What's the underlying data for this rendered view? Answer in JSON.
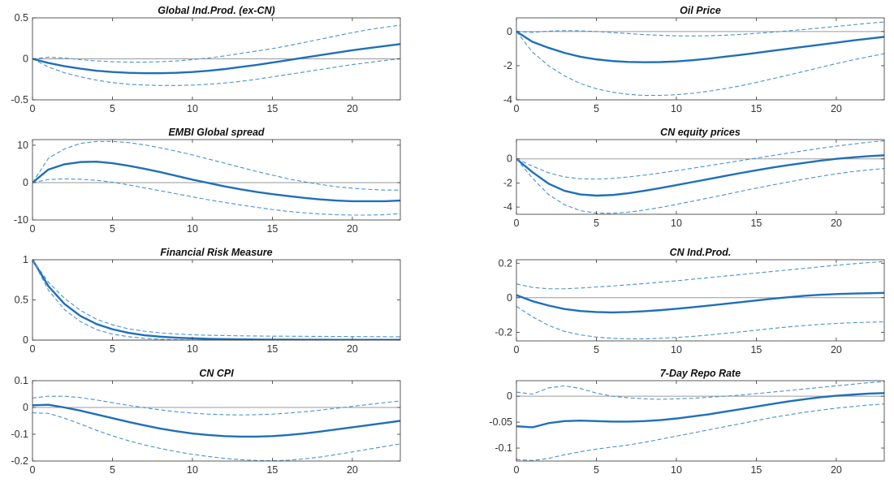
{
  "colors": {
    "irf": "#1f6fba",
    "band": "#4a90d0",
    "zero": "#9a9a9a",
    "axis": "#333333"
  },
  "chart_data": [
    {
      "type": "line",
      "title": "Global Ind.Prod. (ex-CN)",
      "xlim": [
        0,
        23
      ],
      "ylim": [
        -0.5,
        0.5
      ],
      "xticks": [
        0,
        5,
        10,
        15,
        20
      ],
      "yticks": [
        -0.5,
        0,
        0.5
      ],
      "xtick_labels": [
        "0",
        "5",
        "10",
        "15",
        "20"
      ],
      "ytick_labels": [
        "-0.5",
        "0",
        "0.5"
      ],
      "x": [
        0,
        1,
        2,
        3,
        4,
        5,
        6,
        7,
        8,
        9,
        10,
        11,
        12,
        13,
        14,
        15,
        16,
        17,
        18,
        19,
        20,
        21,
        22,
        23
      ],
      "series": [
        {
          "name": "median",
          "values": [
            0,
            -0.05,
            -0.09,
            -0.12,
            -0.145,
            -0.16,
            -0.17,
            -0.175,
            -0.175,
            -0.17,
            -0.16,
            -0.145,
            -0.125,
            -0.1,
            -0.075,
            -0.045,
            -0.015,
            0.015,
            0.045,
            0.075,
            0.105,
            0.13,
            0.155,
            0.18
          ]
        },
        {
          "name": "upper",
          "values": [
            0,
            0.02,
            0.01,
            -0.01,
            -0.025,
            -0.035,
            -0.04,
            -0.04,
            -0.035,
            -0.025,
            -0.01,
            0.01,
            0.035,
            0.065,
            0.095,
            0.125,
            0.16,
            0.2,
            0.24,
            0.28,
            0.32,
            0.355,
            0.385,
            0.41
          ]
        },
        {
          "name": "lower",
          "values": [
            0,
            -0.1,
            -0.17,
            -0.22,
            -0.26,
            -0.29,
            -0.31,
            -0.32,
            -0.325,
            -0.325,
            -0.32,
            -0.31,
            -0.295,
            -0.275,
            -0.25,
            -0.22,
            -0.19,
            -0.16,
            -0.13,
            -0.1,
            -0.07,
            -0.045,
            -0.02,
            0
          ]
        }
      ]
    },
    {
      "type": "line",
      "title": "Oil Price",
      "xlim": [
        0,
        23
      ],
      "ylim": [
        -4,
        0.8
      ],
      "xticks": [
        0,
        5,
        10,
        15,
        20
      ],
      "yticks": [
        -4,
        -2,
        0
      ],
      "xtick_labels": [
        "0",
        "5",
        "10",
        "15",
        "20"
      ],
      "ytick_labels": [
        "-4",
        "-2",
        "0"
      ],
      "x": [
        0,
        1,
        2,
        3,
        4,
        5,
        6,
        7,
        8,
        9,
        10,
        11,
        12,
        13,
        14,
        15,
        16,
        17,
        18,
        19,
        20,
        21,
        22,
        23
      ],
      "series": [
        {
          "name": "median",
          "values": [
            0,
            -0.6,
            -0.95,
            -1.25,
            -1.48,
            -1.63,
            -1.73,
            -1.78,
            -1.8,
            -1.79,
            -1.75,
            -1.68,
            -1.59,
            -1.48,
            -1.37,
            -1.25,
            -1.13,
            -1.01,
            -0.89,
            -0.77,
            -0.65,
            -0.53,
            -0.42,
            -0.31
          ]
        },
        {
          "name": "upper",
          "values": [
            0,
            -0.05,
            0.02,
            0.05,
            0.04,
            0.0,
            -0.06,
            -0.12,
            -0.18,
            -0.22,
            -0.25,
            -0.26,
            -0.25,
            -0.22,
            -0.17,
            -0.11,
            -0.04,
            0.04,
            0.12,
            0.21,
            0.3,
            0.39,
            0.48,
            0.56
          ]
        },
        {
          "name": "lower",
          "values": [
            0,
            -1.2,
            -2.0,
            -2.6,
            -3.05,
            -3.35,
            -3.55,
            -3.68,
            -3.74,
            -3.74,
            -3.7,
            -3.62,
            -3.5,
            -3.35,
            -3.18,
            -2.98,
            -2.77,
            -2.55,
            -2.33,
            -2.1,
            -1.88,
            -1.67,
            -1.48,
            -1.3
          ]
        }
      ]
    },
    {
      "type": "line",
      "title": "EMBI Global spread",
      "xlim": [
        0,
        23
      ],
      "ylim": [
        -10,
        11.5
      ],
      "xticks": [
        0,
        5,
        10,
        15,
        20
      ],
      "yticks": [
        -10,
        0,
        10
      ],
      "xtick_labels": [
        "0",
        "5",
        "10",
        "15",
        "20"
      ],
      "ytick_labels": [
        "-10",
        "0",
        "10"
      ],
      "x": [
        0,
        1,
        2,
        3,
        4,
        5,
        6,
        7,
        8,
        9,
        10,
        11,
        12,
        13,
        14,
        15,
        16,
        17,
        18,
        19,
        20,
        21,
        22,
        23
      ],
      "series": [
        {
          "name": "median",
          "values": [
            0,
            3.5,
            4.9,
            5.5,
            5.6,
            5.2,
            4.5,
            3.7,
            2.8,
            1.8,
            0.8,
            -0.1,
            -1.0,
            -1.8,
            -2.5,
            -3.1,
            -3.6,
            -4.1,
            -4.5,
            -4.8,
            -5.0,
            -5.0,
            -5.0,
            -4.8
          ]
        },
        {
          "name": "upper",
          "values": [
            0,
            6.5,
            9.0,
            10.5,
            11.0,
            11.0,
            10.7,
            10.1,
            9.3,
            8.4,
            7.4,
            6.3,
            5.2,
            4.1,
            3.0,
            2.0,
            1.0,
            0.2,
            -0.5,
            -1.1,
            -1.5,
            -1.8,
            -2.0,
            -2.0
          ]
        },
        {
          "name": "lower",
          "values": [
            0,
            0.8,
            1.0,
            0.9,
            0.6,
            0.1,
            -0.6,
            -1.4,
            -2.2,
            -3.0,
            -3.8,
            -4.6,
            -5.3,
            -6.0,
            -6.6,
            -7.2,
            -7.7,
            -8.1,
            -8.4,
            -8.6,
            -8.7,
            -8.7,
            -8.6,
            -8.3
          ]
        }
      ]
    },
    {
      "type": "line",
      "title": "CN equity prices",
      "xlim": [
        0,
        23
      ],
      "ylim": [
        -4.6,
        1.6
      ],
      "xticks": [
        0,
        5,
        10,
        15,
        20
      ],
      "yticks": [
        -4,
        -2,
        0
      ],
      "xtick_labels": [
        "0",
        "5",
        "10",
        "15",
        "20"
      ],
      "ytick_labels": [
        "-4",
        "-2",
        "0"
      ],
      "x": [
        0,
        1,
        2,
        3,
        4,
        5,
        6,
        7,
        8,
        9,
        10,
        11,
        12,
        13,
        14,
        15,
        16,
        17,
        18,
        19,
        20,
        21,
        22,
        23
      ],
      "series": [
        {
          "name": "median",
          "values": [
            0,
            -1.1,
            -2.05,
            -2.65,
            -2.95,
            -3.05,
            -3.0,
            -2.85,
            -2.65,
            -2.42,
            -2.18,
            -1.93,
            -1.68,
            -1.43,
            -1.18,
            -0.95,
            -0.72,
            -0.52,
            -0.33,
            -0.15,
            0.0,
            0.12,
            0.22,
            0.3
          ]
        },
        {
          "name": "upper",
          "values": [
            0,
            -0.6,
            -1.15,
            -1.5,
            -1.65,
            -1.68,
            -1.62,
            -1.5,
            -1.35,
            -1.17,
            -0.98,
            -0.78,
            -0.57,
            -0.36,
            -0.15,
            0.06,
            0.27,
            0.48,
            0.68,
            0.88,
            1.06,
            1.22,
            1.38,
            1.5
          ]
        },
        {
          "name": "lower",
          "values": [
            0,
            -1.6,
            -2.95,
            -3.8,
            -4.3,
            -4.5,
            -4.52,
            -4.42,
            -4.25,
            -4.03,
            -3.78,
            -3.52,
            -3.25,
            -2.98,
            -2.7,
            -2.43,
            -2.17,
            -1.92,
            -1.68,
            -1.45,
            -1.24,
            -1.06,
            -0.92,
            -0.8
          ]
        }
      ]
    },
    {
      "type": "line",
      "title": "Financial Risk Measure",
      "xlim": [
        0,
        23
      ],
      "ylim": [
        0,
        1
      ],
      "xticks": [
        0,
        5,
        10,
        15,
        20
      ],
      "yticks": [
        0,
        0.5,
        1
      ],
      "xtick_labels": [
        "0",
        "5",
        "10",
        "15",
        "20"
      ],
      "ytick_labels": [
        "0",
        "0.5",
        "1"
      ],
      "x": [
        0,
        1,
        2,
        3,
        4,
        5,
        6,
        7,
        8,
        9,
        10,
        11,
        12,
        13,
        14,
        15,
        16,
        17,
        18,
        19,
        20,
        21,
        22,
        23
      ],
      "series": [
        {
          "name": "median",
          "values": [
            1.0,
            0.67,
            0.45,
            0.3,
            0.2,
            0.135,
            0.09,
            0.06,
            0.042,
            0.03,
            0.022,
            0.016,
            0.012,
            0.009,
            0.007,
            0.006,
            0.005,
            0.004,
            0.004,
            0.003,
            0.003,
            0.003,
            0.003,
            0.003
          ]
        },
        {
          "name": "upper",
          "values": [
            1.0,
            0.72,
            0.52,
            0.37,
            0.26,
            0.19,
            0.14,
            0.11,
            0.09,
            0.075,
            0.066,
            0.06,
            0.056,
            0.053,
            0.051,
            0.049,
            0.048,
            0.047,
            0.046,
            0.045,
            0.044,
            0.043,
            0.042,
            0.041
          ]
        },
        {
          "name": "lower",
          "values": [
            1.0,
            0.62,
            0.38,
            0.23,
            0.13,
            0.075,
            0.042,
            0.022,
            0.01,
            0.004,
            0.0,
            -0.003,
            -0.005,
            -0.006,
            -0.007,
            -0.007,
            -0.007,
            -0.007,
            -0.007,
            -0.007,
            -0.007,
            -0.007,
            -0.007,
            -0.007
          ]
        }
      ]
    },
    {
      "type": "line",
      "title": "CN Ind.Prod.",
      "xlim": [
        0,
        23
      ],
      "ylim": [
        -0.25,
        0.22
      ],
      "xticks": [
        0,
        5,
        10,
        15,
        20
      ],
      "yticks": [
        -0.2,
        0,
        0.2
      ],
      "xtick_labels": [
        "0",
        "5",
        "10",
        "15",
        "20"
      ],
      "ytick_labels": [
        "-0.2",
        "0",
        "0.2"
      ],
      "x": [
        0,
        1,
        2,
        3,
        4,
        5,
        6,
        7,
        8,
        9,
        10,
        11,
        12,
        13,
        14,
        15,
        16,
        17,
        18,
        19,
        20,
        21,
        22,
        23
      ],
      "series": [
        {
          "name": "median",
          "values": [
            0.015,
            -0.02,
            -0.045,
            -0.065,
            -0.077,
            -0.083,
            -0.085,
            -0.083,
            -0.078,
            -0.072,
            -0.064,
            -0.055,
            -0.046,
            -0.036,
            -0.026,
            -0.016,
            -0.006,
            0.003,
            0.011,
            0.017,
            0.021,
            0.024,
            0.026,
            0.028
          ]
        },
        {
          "name": "upper",
          "values": [
            0.08,
            0.06,
            0.052,
            0.052,
            0.056,
            0.062,
            0.068,
            0.075,
            0.082,
            0.09,
            0.098,
            0.107,
            0.116,
            0.125,
            0.134,
            0.143,
            0.152,
            0.161,
            0.17,
            0.179,
            0.188,
            0.196,
            0.203,
            0.21
          ]
        },
        {
          "name": "lower",
          "values": [
            -0.05,
            -0.11,
            -0.16,
            -0.195,
            -0.215,
            -0.228,
            -0.235,
            -0.238,
            -0.238,
            -0.235,
            -0.23,
            -0.224,
            -0.216,
            -0.207,
            -0.198,
            -0.188,
            -0.178,
            -0.169,
            -0.161,
            -0.154,
            -0.149,
            -0.145,
            -0.142,
            -0.14
          ]
        }
      ]
    },
    {
      "type": "line",
      "title": "CN CPI",
      "xlim": [
        0,
        23
      ],
      "ylim": [
        -0.2,
        0.1
      ],
      "xticks": [
        0,
        5,
        10,
        15,
        20
      ],
      "yticks": [
        -0.2,
        -0.1,
        0,
        0.1
      ],
      "xtick_labels": [
        "0",
        "5",
        "10",
        "15",
        "20"
      ],
      "ytick_labels": [
        "-0.2",
        "-0.1",
        "0",
        "0.1"
      ],
      "x": [
        0,
        1,
        2,
        3,
        4,
        5,
        6,
        7,
        8,
        9,
        10,
        11,
        12,
        13,
        14,
        15,
        16,
        17,
        18,
        19,
        20,
        21,
        22,
        23
      ],
      "series": [
        {
          "name": "median",
          "values": [
            0.008,
            0.01,
            0.0,
            -0.012,
            -0.026,
            -0.04,
            -0.054,
            -0.067,
            -0.079,
            -0.089,
            -0.097,
            -0.103,
            -0.107,
            -0.109,
            -0.109,
            -0.107,
            -0.103,
            -0.097,
            -0.09,
            -0.082,
            -0.074,
            -0.066,
            -0.058,
            -0.05
          ]
        },
        {
          "name": "upper",
          "values": [
            0.035,
            0.042,
            0.042,
            0.037,
            0.028,
            0.018,
            0.008,
            -0.001,
            -0.009,
            -0.016,
            -0.021,
            -0.025,
            -0.027,
            -0.028,
            -0.027,
            -0.025,
            -0.021,
            -0.016,
            -0.01,
            -0.003,
            0.004,
            0.011,
            0.018,
            0.024
          ]
        },
        {
          "name": "lower",
          "values": [
            -0.02,
            -0.022,
            -0.04,
            -0.062,
            -0.085,
            -0.106,
            -0.124,
            -0.14,
            -0.153,
            -0.165,
            -0.175,
            -0.183,
            -0.19,
            -0.195,
            -0.198,
            -0.199,
            -0.197,
            -0.192,
            -0.185,
            -0.176,
            -0.166,
            -0.156,
            -0.146,
            -0.136
          ]
        }
      ]
    },
    {
      "type": "line",
      "title": "7-Day Repo Rate",
      "xlim": [
        0,
        23
      ],
      "ylim": [
        -0.125,
        0.03
      ],
      "xticks": [
        0,
        5,
        10,
        15,
        20
      ],
      "yticks": [
        -0.1,
        -0.05,
        0
      ],
      "xtick_labels": [
        "0",
        "5",
        "10",
        "15",
        "20"
      ],
      "ytick_labels": [
        "-0.1",
        "-0.05",
        "0"
      ],
      "x": [
        0,
        1,
        2,
        3,
        4,
        5,
        6,
        7,
        8,
        9,
        10,
        11,
        12,
        13,
        14,
        15,
        16,
        17,
        18,
        19,
        20,
        21,
        22,
        23
      ],
      "series": [
        {
          "name": "median",
          "values": [
            -0.058,
            -0.06,
            -0.052,
            -0.048,
            -0.047,
            -0.048,
            -0.049,
            -0.049,
            -0.048,
            -0.046,
            -0.043,
            -0.039,
            -0.035,
            -0.03,
            -0.025,
            -0.02,
            -0.015,
            -0.01,
            -0.006,
            -0.002,
            0.001,
            0.003,
            0.005,
            0.006
          ]
        },
        {
          "name": "upper",
          "values": [
            0.008,
            0.004,
            0.016,
            0.02,
            0.015,
            0.006,
            0.0,
            -0.003,
            -0.005,
            -0.006,
            -0.005,
            -0.004,
            -0.002,
            0.0,
            0.002,
            0.005,
            0.008,
            0.011,
            0.014,
            0.017,
            0.02,
            0.023,
            0.026,
            0.028
          ]
        },
        {
          "name": "lower",
          "values": [
            -0.122,
            -0.124,
            -0.12,
            -0.113,
            -0.107,
            -0.102,
            -0.098,
            -0.094,
            -0.089,
            -0.083,
            -0.077,
            -0.071,
            -0.065,
            -0.059,
            -0.053,
            -0.047,
            -0.041,
            -0.036,
            -0.031,
            -0.027,
            -0.023,
            -0.02,
            -0.017,
            -0.015
          ]
        }
      ]
    }
  ]
}
